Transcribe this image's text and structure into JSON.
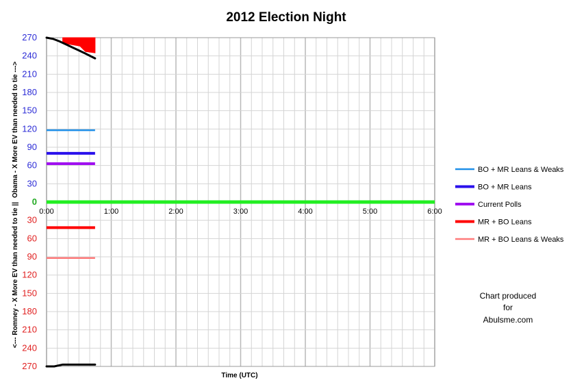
{
  "chart_data": {
    "type": "line",
    "title": "2012 Election Night",
    "xlabel": "Time (UTC)",
    "ylabel_top": "Obama - X More EV than needed to tie --->",
    "ylabel_bottom": "<--- Romney - X More EV than needed to tie ||",
    "x_ticks": [
      "0:00",
      "1:00",
      "2:00",
      "3:00",
      "4:00",
      "5:00",
      "6:00"
    ],
    "xlim_hours": [
      0,
      6
    ],
    "y_ticks_top": [
      "270",
      "240",
      "210",
      "180",
      "150",
      "120",
      "90",
      "60",
      "30"
    ],
    "y_tick_zero": "0",
    "y_ticks_bottom": [
      "30",
      "60",
      "90",
      "120",
      "150",
      "180",
      "210",
      "240",
      "270"
    ],
    "ylim": [
      -270,
      270
    ],
    "grid": true,
    "legend_position": "right",
    "series": [
      {
        "name": "BO + MR Leans & Weaks",
        "color": "#1f8fe8",
        "x": [
          0,
          0.75
        ],
        "y": [
          118,
          118
        ]
      },
      {
        "name": "BO + MR Leans",
        "color": "#2a10ec",
        "x": [
          0,
          0.75
        ],
        "y": [
          80,
          80
        ]
      },
      {
        "name": "Current Polls",
        "color": "#a010f0",
        "x": [
          0,
          0.75
        ],
        "y": [
          63,
          63
        ]
      },
      {
        "name": "MR + BO Leans",
        "color": "#ff0000",
        "x": [
          0,
          0.75
        ],
        "y": [
          -42,
          -42
        ]
      },
      {
        "name": "MR + BO Leans & Weaks",
        "color": "#ff7a7a",
        "x": [
          0,
          0.75
        ],
        "y": [
          -92,
          -92
        ]
      }
    ],
    "zero_line": {
      "color": "#22ee22",
      "x": [
        0,
        6
      ],
      "y": [
        0,
        0
      ]
    },
    "upper_envelope": {
      "color": "#000000",
      "x": [
        0,
        0.1,
        0.2,
        0.3,
        0.4,
        0.5,
        0.6,
        0.75
      ],
      "y": [
        270,
        268,
        264,
        259,
        254,
        249,
        244,
        236
      ]
    },
    "lower_envelope": {
      "color": "#000000",
      "x": [
        0,
        0.12,
        0.25,
        0.4,
        0.55,
        0.75
      ],
      "y": [
        -270,
        -270,
        -267,
        -267,
        -267,
        -267
      ]
    },
    "red_fill": {
      "color": "#ff0000",
      "x_range": [
        0.25,
        0.75
      ],
      "y_bottom": 245,
      "y_top": 270
    },
    "credit": [
      "Chart produced",
      "for",
      "Abulsme.com"
    ],
    "colors": {
      "positive_ticks": "#2b2bd6",
      "negative_ticks": "#e02020",
      "zero_tick": "#22aa22"
    }
  }
}
